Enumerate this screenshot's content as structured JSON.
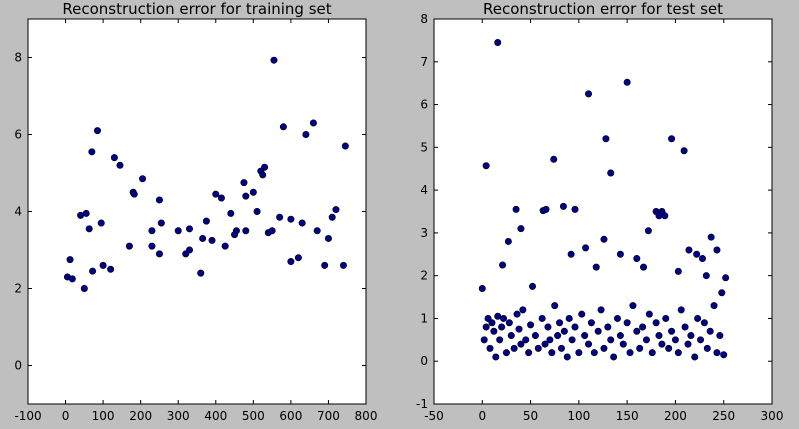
{
  "chart_data": [
    {
      "type": "scatter",
      "title": "Reconstruction error for training set",
      "xlabel": "",
      "ylabel": "",
      "xlim": [
        -100,
        800
      ],
      "ylim": [
        -1,
        9
      ],
      "xticks": [
        -100,
        0,
        100,
        200,
        300,
        400,
        500,
        600,
        700,
        800
      ],
      "yticks": [
        0,
        2,
        4,
        6,
        8
      ],
      "grid": false,
      "marker_color": "#00008b",
      "x": [
        5,
        12,
        18,
        40,
        55,
        63,
        70,
        72,
        85,
        95,
        100,
        130,
        145,
        180,
        183,
        205,
        230,
        250,
        255,
        300,
        330,
        360,
        365,
        375,
        390,
        400,
        415,
        425,
        440,
        455,
        475,
        480,
        500,
        510,
        520,
        525,
        530,
        540,
        550,
        555,
        570,
        580,
        600,
        620,
        630,
        640,
        660,
        670,
        700,
        710,
        720,
        740,
        745,
        250,
        320,
        480,
        600,
        330,
        170,
        450,
        50,
        120,
        230,
        690
      ],
      "y": [
        2.3,
        2.75,
        2.25,
        3.9,
        3.95,
        3.55,
        5.55,
        2.45,
        6.1,
        3.7,
        2.6,
        5.4,
        5.2,
        4.5,
        4.45,
        4.85,
        3.5,
        4.3,
        3.7,
        3.5,
        3.55,
        2.4,
        3.3,
        3.75,
        3.25,
        4.45,
        4.35,
        3.1,
        3.95,
        3.5,
        4.75,
        4.4,
        4.5,
        4.0,
        5.05,
        4.95,
        5.15,
        3.45,
        3.5,
        7.93,
        3.85,
        6.2,
        3.8,
        2.8,
        3.7,
        6.0,
        6.3,
        3.5,
        3.3,
        3.85,
        4.05,
        2.6,
        5.7,
        2.9,
        2.9,
        3.5,
        2.7,
        3.0,
        3.1,
        3.4,
        2.0,
        2.5,
        3.1,
        2.6
      ]
    },
    {
      "type": "scatter",
      "title": "Reconstruction error for test set",
      "xlabel": "",
      "ylabel": "",
      "xlim": [
        -50,
        300
      ],
      "ylim": [
        -1,
        8
      ],
      "xticks": [
        -50,
        0,
        50,
        100,
        150,
        200,
        250,
        300
      ],
      "yticks": [
        -1,
        0,
        1,
        2,
        3,
        4,
        5,
        6,
        7,
        8
      ],
      "grid": false,
      "marker_color": "#00008b",
      "x": [
        0,
        2,
        4,
        6,
        8,
        10,
        12,
        14,
        16,
        18,
        20,
        22,
        25,
        28,
        30,
        33,
        36,
        38,
        40,
        42,
        45,
        48,
        50,
        55,
        58,
        62,
        65,
        68,
        70,
        72,
        75,
        78,
        80,
        82,
        85,
        88,
        90,
        93,
        96,
        100,
        103,
        106,
        110,
        113,
        116,
        120,
        123,
        126,
        130,
        133,
        136,
        140,
        143,
        146,
        150,
        153,
        156,
        160,
        163,
        166,
        170,
        173,
        176,
        180,
        183,
        186,
        190,
        193,
        196,
        200,
        203,
        206,
        210,
        213,
        216,
        220,
        223,
        226,
        230,
        233,
        236,
        240,
        243,
        246,
        250,
        4,
        16,
        21,
        27,
        35,
        40,
        52,
        63,
        66,
        74,
        84,
        92,
        96,
        107,
        110,
        118,
        126,
        128,
        133,
        143,
        150,
        160,
        167,
        172,
        180,
        183,
        186,
        189,
        196,
        203,
        209,
        214,
        222,
        228,
        232,
        237,
        243,
        248,
        252
      ],
      "y": [
        1.7,
        0.5,
        0.8,
        1.0,
        0.3,
        0.9,
        0.7,
        0.1,
        1.05,
        0.5,
        0.8,
        1.0,
        0.2,
        0.9,
        0.6,
        0.3,
        1.1,
        0.75,
        0.4,
        1.2,
        0.5,
        0.2,
        0.85,
        0.6,
        0.3,
        1.0,
        0.4,
        0.8,
        0.5,
        0.2,
        1.3,
        0.6,
        0.9,
        0.3,
        0.7,
        0.1,
        1.0,
        0.5,
        0.8,
        0.2,
        1.1,
        0.6,
        0.4,
        0.9,
        0.2,
        0.7,
        1.2,
        0.3,
        0.8,
        0.5,
        0.1,
        1.0,
        0.6,
        0.4,
        0.9,
        0.2,
        1.3,
        0.7,
        0.3,
        0.8,
        0.5,
        1.1,
        0.2,
        0.9,
        0.6,
        0.4,
        1.0,
        0.3,
        0.7,
        0.5,
        0.2,
        1.2,
        0.8,
        0.4,
        0.6,
        0.1,
        1.0,
        0.5,
        0.9,
        0.3,
        0.7,
        1.3,
        0.2,
        0.6,
        0.15,
        4.57,
        7.45,
        2.25,
        2.8,
        3.55,
        3.1,
        1.75,
        3.52,
        3.55,
        4.72,
        3.62,
        2.5,
        3.55,
        2.65,
        6.25,
        2.2,
        2.85,
        5.2,
        4.4,
        2.5,
        6.52,
        2.4,
        2.2,
        3.05,
        3.5,
        3.4,
        3.5,
        3.4,
        5.2,
        2.1,
        4.92,
        2.6,
        2.5,
        2.4,
        2.0,
        2.9,
        2.6,
        1.6,
        1.95
      ]
    }
  ]
}
